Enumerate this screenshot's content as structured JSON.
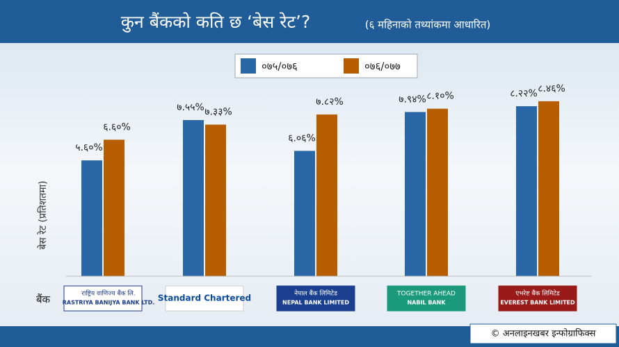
{
  "chart_data": {
    "type": "bar",
    "title": "कुन बैंकको कति छ ‘बेस रेट’?",
    "subtitle": "(६ महिनाको तथ्यांकमा आधारित)",
    "y_label": "बेस रेट (प्रतिशतमा)",
    "x_label": "बैंक",
    "categories": [
      "RASTRIYA BANIJYA BANK LTD.",
      "Standard Chartered",
      "NEPAL BANK LIMITED",
      "NABIL BANK",
      "EVEREST BANK LIMITED"
    ],
    "logo_subtexts": [
      "राष्ट्रिय वाणिज्य बैंक लि.",
      null,
      "नेपाल बैंक लिमिटेड",
      "TOGETHER AHEAD",
      "एभरेष्ट बैंक लिमिटेड"
    ],
    "series": [
      {
        "name": "०७५/०७६",
        "color": "#2a67a6",
        "values": [
          5.6,
          7.55,
          6.06,
          7.94,
          8.22
        ],
        "value_labels": [
          "५.६०%",
          "७.५५%",
          "६.०६%",
          "७.९४%",
          "८.२२%"
        ]
      },
      {
        "name": "०७६/०७७",
        "color": "#b65d00",
        "values": [
          6.6,
          7.33,
          7.82,
          8.1,
          8.46
        ],
        "value_labels": [
          "६.६०%",
          "७.३३%",
          "७.८२%",
          "८.१०%",
          "८.४६%"
        ]
      }
    ],
    "ylim": [
      0,
      10
    ],
    "footer": "© अनलाइनखबर इन्फोग्राफिक्स"
  }
}
